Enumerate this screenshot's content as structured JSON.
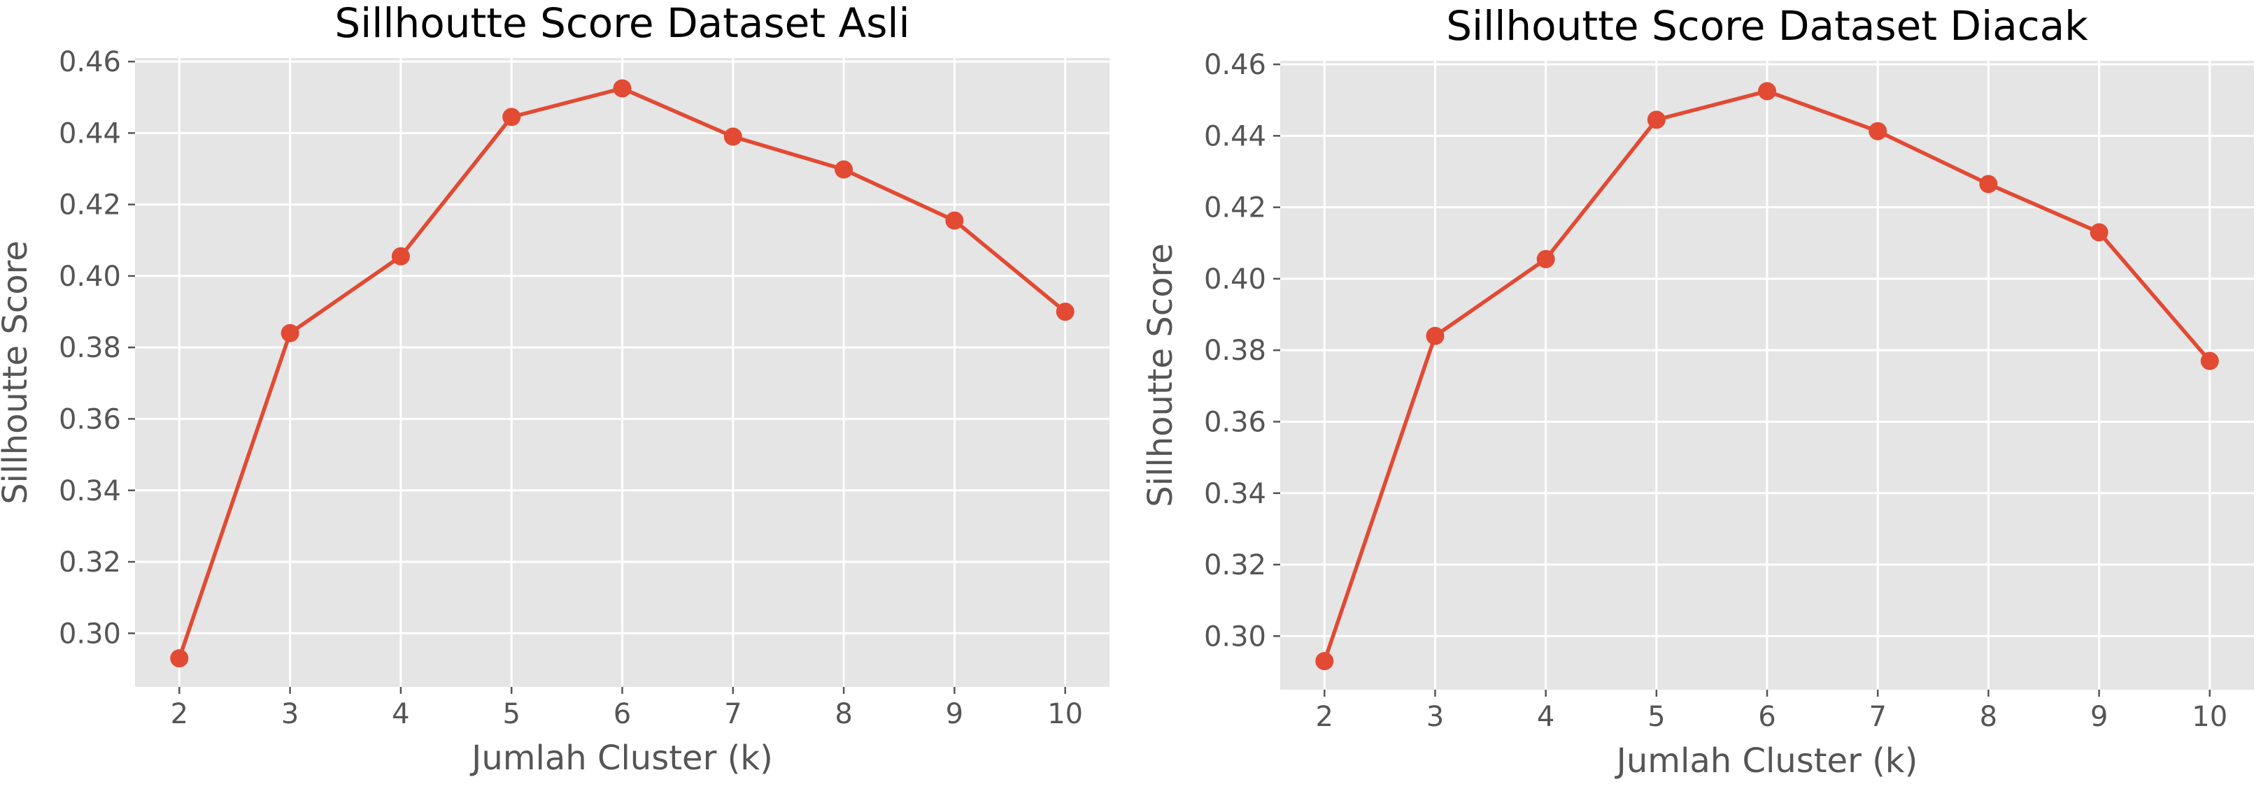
{
  "chart_data": [
    {
      "type": "line",
      "title": "Sillhoutte Score Dataset Asli",
      "xlabel": "Jumlah Cluster (k)",
      "ylabel": "Sillhoutte Score",
      "x": [
        2,
        3,
        4,
        5,
        6,
        7,
        8,
        9,
        10
      ],
      "xticks": [
        "2",
        "3",
        "4",
        "5",
        "6",
        "7",
        "8",
        "9",
        "10"
      ],
      "yticks": [
        "0.30",
        "0.32",
        "0.34",
        "0.36",
        "0.38",
        "0.40",
        "0.42",
        "0.44",
        "0.46"
      ],
      "xlim": [
        1.6,
        10.4
      ],
      "ylim": [
        0.285,
        0.461
      ],
      "grid": true,
      "series": [
        {
          "values": [
            0.293,
            0.384,
            0.4055,
            0.4445,
            0.4525,
            0.439,
            0.4298,
            0.4155,
            0.39
          ],
          "color": "#e24a33",
          "marker": "circle"
        }
      ]
    },
    {
      "type": "line",
      "title": "Sillhoutte Score Dataset Diacak",
      "xlabel": "Jumlah Cluster (k)",
      "ylabel": "Sillhoutte Score",
      "x": [
        2,
        3,
        4,
        5,
        6,
        7,
        8,
        9,
        10
      ],
      "xticks": [
        "2",
        "3",
        "4",
        "5",
        "6",
        "7",
        "8",
        "9",
        "10"
      ],
      "yticks": [
        "0.30",
        "0.32",
        "0.34",
        "0.36",
        "0.38",
        "0.40",
        "0.42",
        "0.44",
        "0.46"
      ],
      "xlim": [
        1.6,
        10.4
      ],
      "ylim": [
        0.285,
        0.461
      ],
      "grid": true,
      "series": [
        {
          "values": [
            0.293,
            0.384,
            0.4055,
            0.4445,
            0.4525,
            0.4413,
            0.4265,
            0.413,
            0.377
          ],
          "color": "#e24a33",
          "marker": "circle"
        }
      ]
    }
  ]
}
